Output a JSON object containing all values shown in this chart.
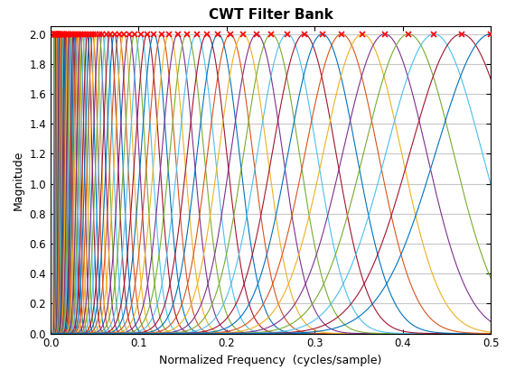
{
  "title": "CWT Filter Bank",
  "xlabel": "Normalized Frequency  (cycles/sample)",
  "ylabel": "Magnitude",
  "xlim": [
    0,
    0.5
  ],
  "ylim": [
    0,
    2.05
  ],
  "n_filters": 71,
  "peak_magnitude": 2.0,
  "freq_min": 0.004,
  "freq_max": 0.5,
  "n_points": 2000,
  "colors": [
    "#0072bd",
    "#d95319",
    "#edb120",
    "#7e2f8e",
    "#77ac30",
    "#4dbeee",
    "#a2142f"
  ],
  "grid_color": "#c8c8c8",
  "background_color": "#ffffff",
  "marker_color": "#ff0000",
  "marker": "x",
  "marker_size": 4,
  "title_fontsize": 11,
  "axis_label_fontsize": 9,
  "tick_fontsize": 8.5,
  "yticks": [
    0,
    0.2,
    0.4,
    0.6,
    0.8,
    1.0,
    1.2,
    1.4,
    1.6,
    1.8,
    2.0
  ],
  "xticks": [
    0,
    0.1,
    0.2,
    0.3,
    0.4,
    0.5
  ],
  "sigma_Q": 8.0
}
